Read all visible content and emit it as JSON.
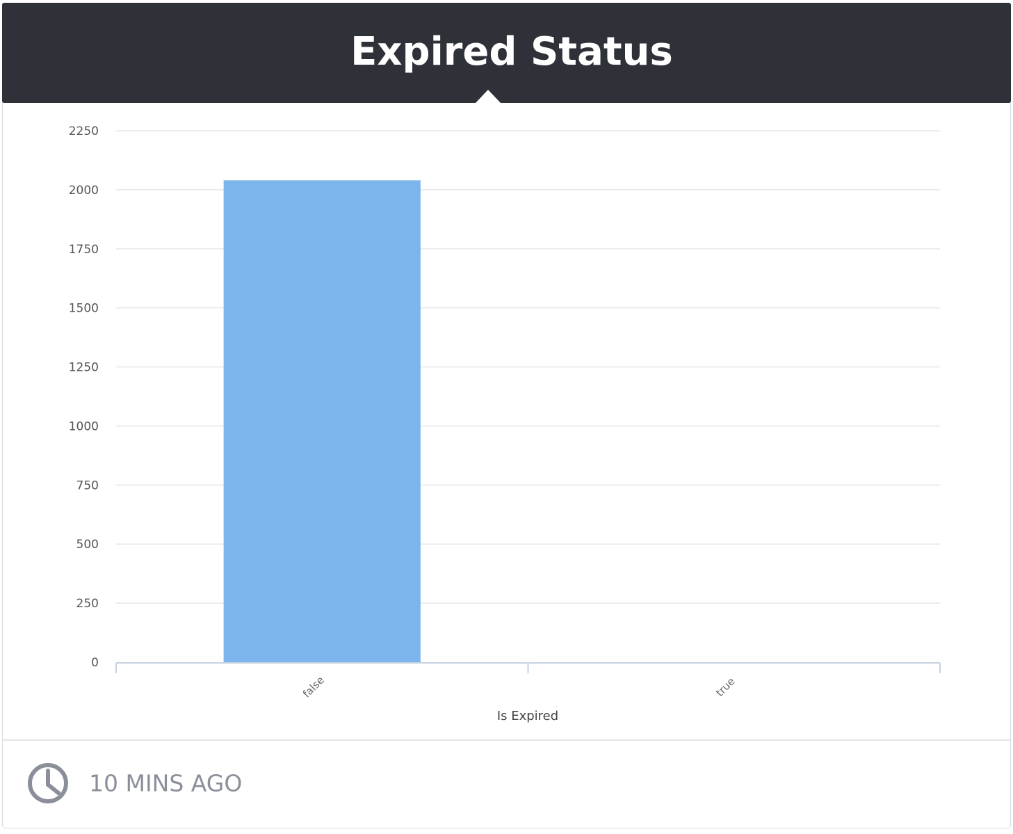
{
  "chart_data": {
    "type": "bar",
    "title": "Expired Status",
    "categories": [
      "false",
      "true"
    ],
    "values": [
      2040,
      0
    ],
    "color": "#7cb5ec",
    "x_label": "Is Expired",
    "ylim": [
      0,
      2250
    ],
    "yticks": [
      0,
      250,
      500,
      750,
      1000,
      1250,
      1500,
      1750,
      2000,
      2250
    ],
    "grid": true
  },
  "footer": {
    "timestamp": "10 MINS AGO"
  }
}
